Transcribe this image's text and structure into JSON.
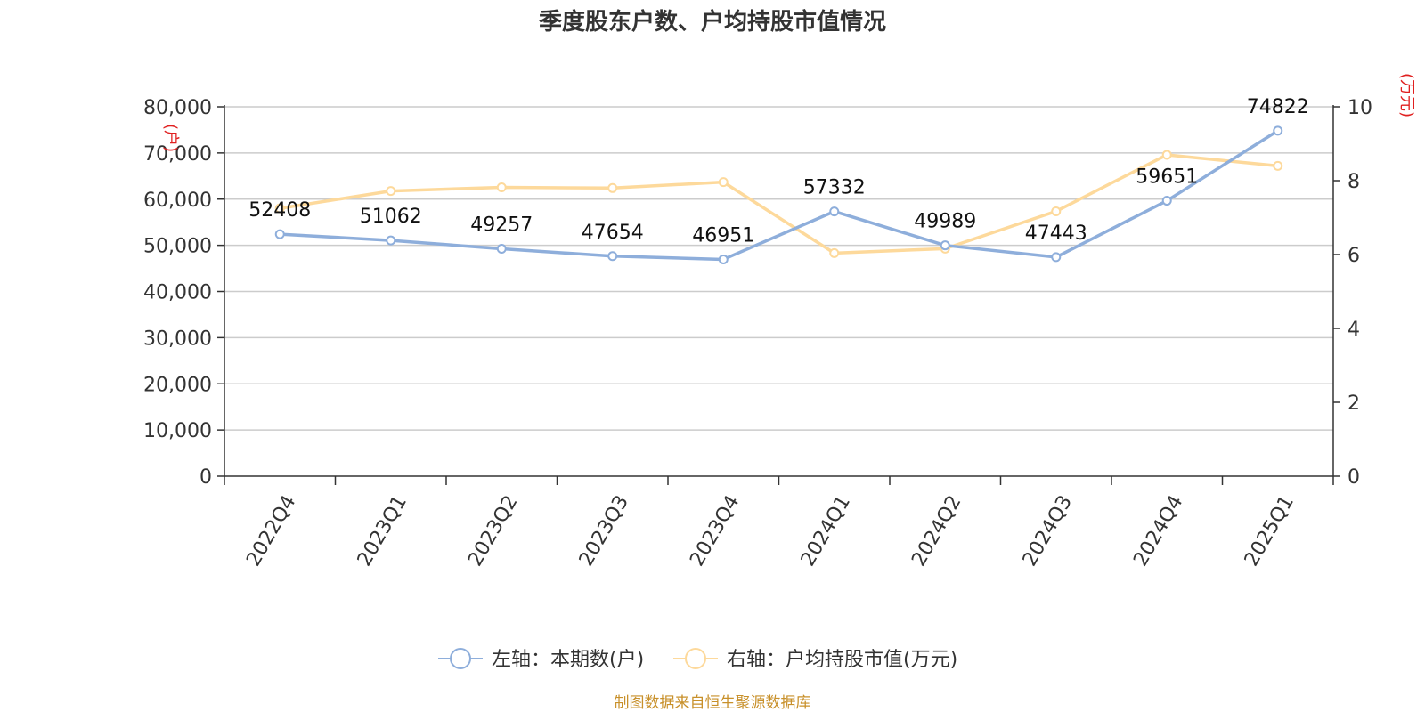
{
  "chart_data": {
    "type": "line",
    "title": "季度股东户数、户均持股市值情况",
    "categories": [
      "2022Q4",
      "2023Q1",
      "2023Q2",
      "2023Q3",
      "2023Q4",
      "2024Q1",
      "2024Q2",
      "2024Q3",
      "2024Q4",
      "2025Q1"
    ],
    "left_axis": {
      "unit": "(户)",
      "ylim": [
        0,
        80000
      ],
      "ticks": [
        "0",
        "10,000",
        "20,000",
        "30,000",
        "40,000",
        "50,000",
        "60,000",
        "70,000",
        "80,000"
      ]
    },
    "right_axis": {
      "unit": "(万元)",
      "ylim": [
        0,
        10
      ],
      "ticks": [
        "0",
        "2",
        "4",
        "6",
        "8",
        "10"
      ]
    },
    "grid": true,
    "legend_position": "bottom-center",
    "series": [
      {
        "name": "左轴：本期数(户)",
        "axis": "left",
        "color": "#8eaedb",
        "values": [
          52408,
          51062,
          49257,
          47654,
          46951,
          57332,
          49989,
          47443,
          59651,
          74822
        ],
        "labels": [
          "52408",
          "51062",
          "49257",
          "47654",
          "46951",
          "57332",
          "49989",
          "47443",
          "59651",
          "74822"
        ]
      },
      {
        "name": "右轴：户均持股市值(万元)",
        "axis": "right",
        "color": "#fdd99b",
        "values": [
          7.25,
          7.72,
          7.82,
          7.8,
          7.96,
          6.04,
          6.16,
          7.17,
          8.7,
          8.4
        ]
      }
    ],
    "source": "制图数据来自恒生聚源数据库"
  }
}
